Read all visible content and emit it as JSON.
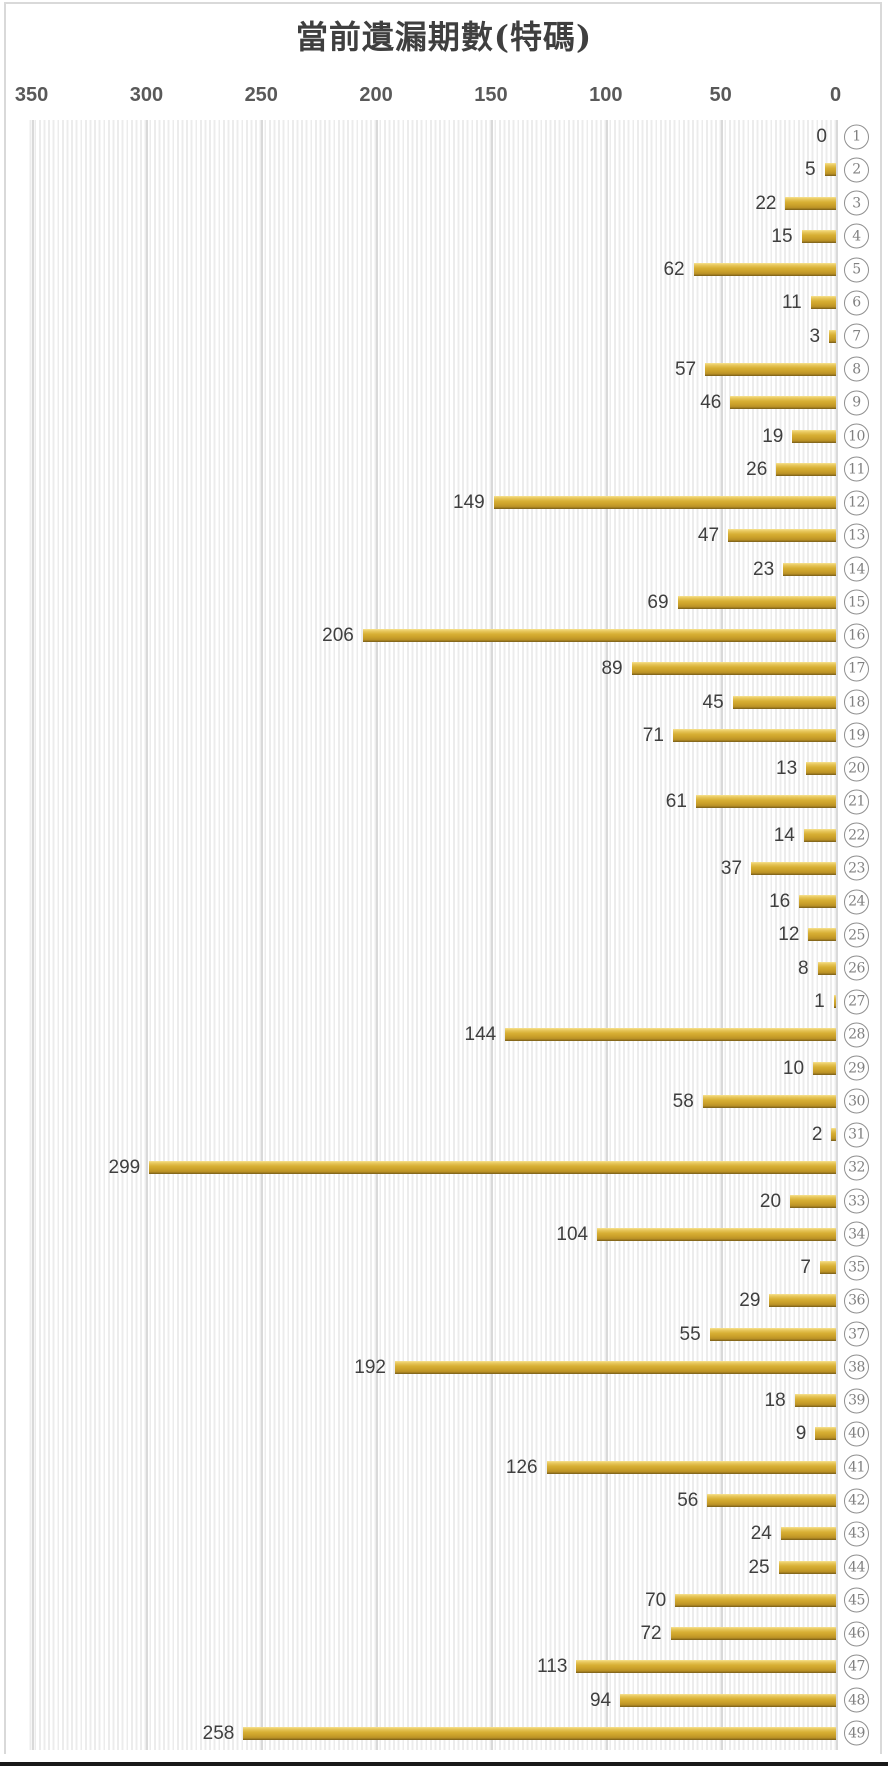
{
  "chart": {
    "title": "當前遺漏期數(特碼)"
  },
  "chart_data": {
    "type": "bar",
    "orientation": "horizontal",
    "bars_anchored": "right",
    "title": "當前遺漏期數(特碼)",
    "x_axis_position": "top",
    "x_axis_reversed": true,
    "xlim": [
      350,
      0
    ],
    "xticks": [
      350,
      300,
      250,
      200,
      150,
      100,
      50,
      0
    ],
    "grid": true,
    "legend": false,
    "category_style": "circled-number",
    "categories": [
      "1",
      "2",
      "3",
      "4",
      "5",
      "6",
      "7",
      "8",
      "9",
      "10",
      "11",
      "12",
      "13",
      "14",
      "15",
      "16",
      "17",
      "18",
      "19",
      "20",
      "21",
      "22",
      "23",
      "24",
      "25",
      "26",
      "27",
      "28",
      "29",
      "30",
      "31",
      "32",
      "33",
      "34",
      "35",
      "36",
      "37",
      "38",
      "39",
      "40",
      "41",
      "42",
      "43",
      "44",
      "45",
      "46",
      "47",
      "48",
      "49"
    ],
    "values": [
      0,
      5,
      22,
      15,
      62,
      11,
      3,
      57,
      46,
      19,
      26,
      149,
      47,
      23,
      69,
      206,
      89,
      45,
      71,
      13,
      61,
      14,
      37,
      16,
      12,
      8,
      1,
      144,
      10,
      58,
      2,
      299,
      20,
      104,
      7,
      29,
      55,
      192,
      18,
      9,
      126,
      56,
      24,
      25,
      70,
      72,
      113,
      94,
      258
    ]
  },
  "colors": {
    "bar_main": "#d2a930",
    "bar_gradient_top": "#f6e291",
    "bar_gradient_bottom": "#6e5515",
    "value_label": "#3f3f3f",
    "axis_label": "#595959",
    "category_badge": "#808080",
    "gridline": "#d9d9d9",
    "plot_stripe": "#ececec",
    "frame_border": "#d9d9d9",
    "bottom_bar": "#191919"
  }
}
